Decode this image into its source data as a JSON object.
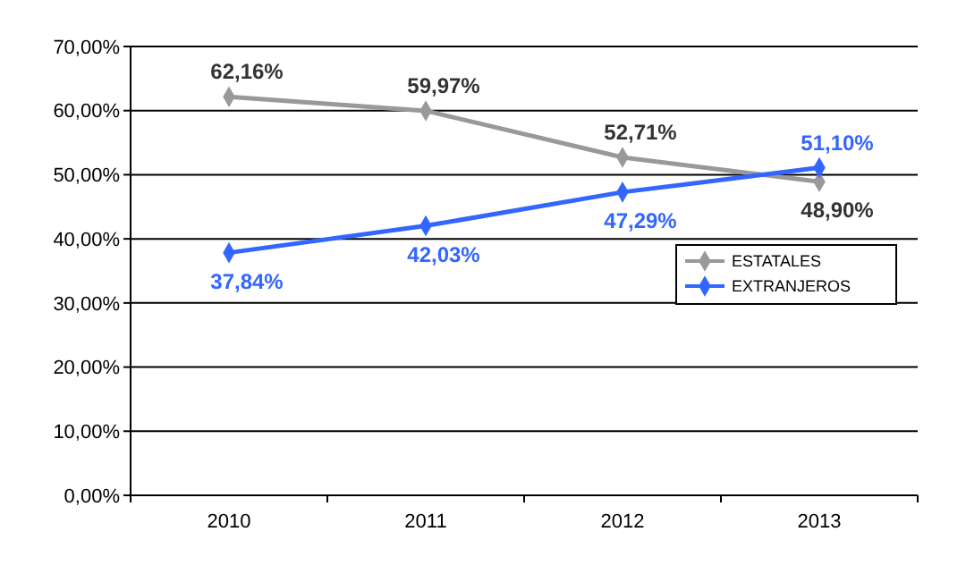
{
  "chart_data": {
    "type": "line",
    "categories": [
      "2010",
      "2011",
      "2012",
      "2013"
    ],
    "series": [
      {
        "name": "ESTATALES",
        "color": "#999999",
        "values": [
          62.16,
          59.97,
          52.71,
          48.9
        ],
        "value_labels": [
          "62,16%",
          "59,97%",
          "52,71%",
          "48,90%"
        ]
      },
      {
        "name": "EXTRANJEROS",
        "color": "#3366ff",
        "values": [
          37.84,
          42.03,
          47.29,
          51.1
        ],
        "value_labels": [
          "37,84%",
          "42,03%",
          "47,29%",
          "51,10%"
        ]
      }
    ],
    "ylim": [
      0,
      70
    ],
    "yticks": [
      {
        "value": 0,
        "label": "0,00%"
      },
      {
        "value": 10,
        "label": "10,00%"
      },
      {
        "value": 20,
        "label": "20,00%"
      },
      {
        "value": 30,
        "label": "30,00%"
      },
      {
        "value": 40,
        "label": "40,00%"
      },
      {
        "value": 50,
        "label": "50,00%"
      },
      {
        "value": 60,
        "label": "60,00%"
      },
      {
        "value": 70,
        "label": "70,00%"
      }
    ],
    "grid": "y",
    "legend": "right",
    "marker": "diamond",
    "line_style": "solid"
  }
}
